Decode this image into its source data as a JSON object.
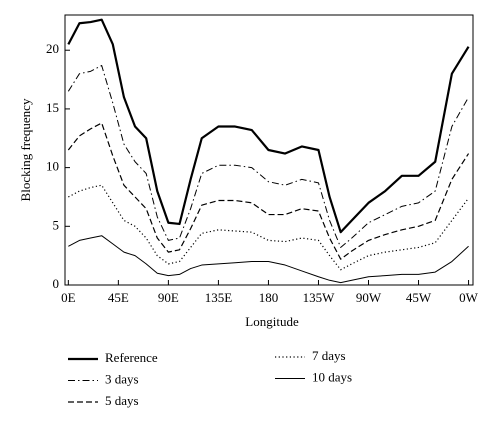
{
  "chart_data": {
    "type": "line",
    "xlabel": "Longitude",
    "ylabel": "Blocking frequency",
    "x": [
      0,
      10,
      20,
      30,
      40,
      50,
      60,
      70,
      80,
      90,
      100,
      110,
      120,
      135,
      150,
      165,
      180,
      195,
      210,
      225,
      235,
      245,
      255,
      270,
      285,
      300,
      315,
      330,
      345,
      360
    ],
    "xlim": [
      -3,
      364
    ],
    "xticks": [
      {
        "value": 0,
        "label": "0E"
      },
      {
        "value": 45,
        "label": "45E"
      },
      {
        "value": 90,
        "label": "90E"
      },
      {
        "value": 135,
        "label": "135E"
      },
      180,
      {
        "value": 225,
        "label": "135W"
      },
      {
        "value": 270,
        "label": "90W"
      },
      {
        "value": 315,
        "label": "45W"
      },
      {
        "value": 360,
        "label": "0W"
      }
    ],
    "ylim": [
      0,
      23
    ],
    "yticks": [
      0,
      5,
      10,
      15,
      20
    ],
    "series": [
      {
        "name": "Reference",
        "color": "#000000",
        "style": "solid",
        "width": 2.2,
        "values": [
          20.5,
          22.3,
          22.4,
          22.6,
          20.5,
          16,
          13.5,
          12.5,
          8,
          5.3,
          5.2,
          9,
          12.5,
          13.5,
          13.5,
          13.2,
          11.5,
          11.2,
          11.8,
          11.5,
          7.5,
          4.5,
          5.5,
          7,
          8,
          9.3,
          9.3,
          10.5,
          18,
          20.3
        ]
      },
      {
        "name": "3 days",
        "color": "#000000",
        "style": "dashdot",
        "width": 1,
        "values": [
          16.5,
          18,
          18.2,
          18.7,
          15.5,
          12,
          10.5,
          9.5,
          5.8,
          3.8,
          4,
          6.5,
          9.5,
          10.2,
          10.2,
          10,
          8.8,
          8.5,
          9,
          8.7,
          5.5,
          3.2,
          4,
          5.3,
          6,
          6.7,
          7,
          8,
          13.5,
          16
        ]
      },
      {
        "name": "5 days",
        "color": "#000000",
        "style": "dashed",
        "width": 1.2,
        "values": [
          11.5,
          12.7,
          13.3,
          13.8,
          11,
          8.5,
          7.5,
          6.5,
          4,
          2.8,
          3,
          4.8,
          6.8,
          7.2,
          7.2,
          7,
          6,
          6,
          6.5,
          6.3,
          4,
          2.2,
          2.9,
          3.8,
          4.3,
          4.7,
          5,
          5.5,
          9,
          11.2
        ]
      },
      {
        "name": "7 days",
        "color": "#000000",
        "style": "dotted",
        "width": 1.2,
        "values": [
          7.5,
          8,
          8.3,
          8.5,
          7,
          5.5,
          5,
          4,
          2.5,
          1.8,
          2,
          3.2,
          4.4,
          4.7,
          4.6,
          4.5,
          3.8,
          3.7,
          4,
          3.8,
          2.5,
          1.3,
          1.8,
          2.5,
          2.8,
          3,
          3.2,
          3.6,
          5.5,
          7.4
        ]
      },
      {
        "name": "10 days",
        "color": "#000000",
        "style": "solid",
        "width": 1,
        "values": [
          3.3,
          3.8,
          4,
          4.2,
          3.5,
          2.8,
          2.5,
          1.8,
          1,
          0.8,
          0.9,
          1.4,
          1.7,
          1.8,
          1.9,
          2,
          2,
          1.7,
          1.2,
          0.7,
          0.4,
          0.2,
          0.4,
          0.7,
          0.8,
          0.9,
          0.9,
          1.1,
          2,
          3.3
        ]
      }
    ]
  }
}
